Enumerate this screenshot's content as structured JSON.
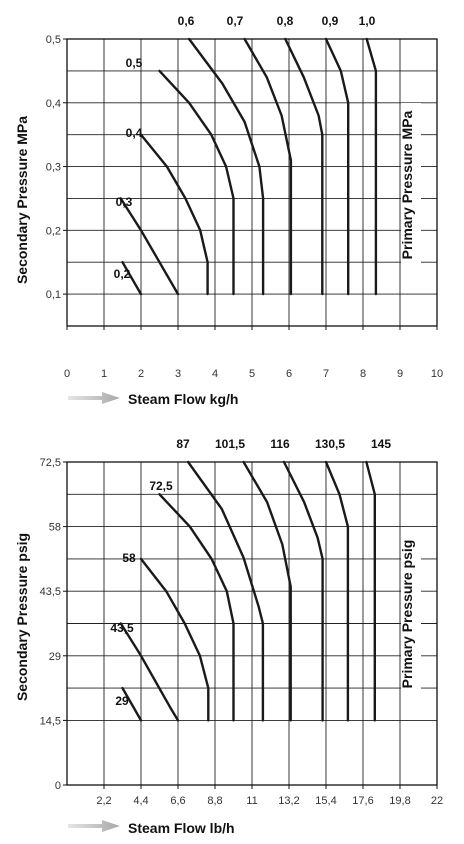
{
  "chart_data": [
    {
      "type": "line",
      "ylabel": "Secondary Pressure MPa",
      "xlabel": "Steam Flow kg/h",
      "right_label": "Primary Pressure MPa",
      "xlim": [
        0,
        10
      ],
      "ylim": [
        0.05,
        0.5
      ],
      "x_ticks": [
        0,
        1,
        2,
        3,
        4,
        5,
        6,
        7,
        8,
        9,
        10
      ],
      "x_tick_labels": [
        "0",
        "1",
        "2",
        "3",
        "4",
        "5",
        "6",
        "7",
        "8",
        "9",
        "10"
      ],
      "y_ticks": [
        0.1,
        0.2,
        0.3,
        0.4,
        0.5
      ],
      "y_tick_labels": [
        "0,1",
        "0,2",
        "0,3",
        "0,4",
        "0,5"
      ],
      "y_grid": [
        0.1,
        0.15,
        0.2,
        0.25,
        0.3,
        0.35,
        0.4,
        0.45,
        0.5
      ],
      "grid": true,
      "series": [
        {
          "name": "0,2",
          "points": [
            [
              1.5,
              0.15
            ],
            [
              2.0,
              0.1
            ]
          ]
        },
        {
          "name": "0,3",
          "points": [
            [
              1.45,
              0.25
            ],
            [
              2.0,
              0.2
            ],
            [
              2.4,
              0.16
            ],
            [
              2.8,
              0.12
            ],
            [
              3.0,
              0.1
            ]
          ]
        },
        {
          "name": "0,4",
          "points": [
            [
              2.0,
              0.35
            ],
            [
              2.7,
              0.3
            ],
            [
              3.2,
              0.25
            ],
            [
              3.6,
              0.2
            ],
            [
              3.8,
              0.15
            ],
            [
              3.8,
              0.1
            ]
          ]
        },
        {
          "name": "0,5",
          "points": [
            [
              2.5,
              0.45
            ],
            [
              3.3,
              0.4
            ],
            [
              3.9,
              0.35
            ],
            [
              4.3,
              0.3
            ],
            [
              4.5,
              0.25
            ],
            [
              4.5,
              0.2
            ],
            [
              4.5,
              0.1
            ]
          ]
        },
        {
          "name": "0,6",
          "points": [
            [
              3.3,
              0.5
            ],
            [
              4.2,
              0.43
            ],
            [
              4.8,
              0.37
            ],
            [
              5.2,
              0.3
            ],
            [
              5.3,
              0.25
            ],
            [
              5.3,
              0.1
            ]
          ]
        },
        {
          "name": "0,7",
          "points": [
            [
              4.8,
              0.5
            ],
            [
              5.4,
              0.44
            ],
            [
              5.8,
              0.38
            ],
            [
              6.05,
              0.31
            ],
            [
              6.05,
              0.3
            ],
            [
              6.05,
              0.1
            ]
          ]
        },
        {
          "name": "0,8",
          "points": [
            [
              5.9,
              0.5
            ],
            [
              6.4,
              0.44
            ],
            [
              6.8,
              0.38
            ],
            [
              6.9,
              0.35
            ],
            [
              6.9,
              0.1
            ]
          ]
        },
        {
          "name": "0,9",
          "points": [
            [
              7.0,
              0.5
            ],
            [
              7.4,
              0.45
            ],
            [
              7.6,
              0.4
            ],
            [
              7.6,
              0.1
            ]
          ]
        },
        {
          "name": "1,0",
          "points": [
            [
              8.1,
              0.5
            ],
            [
              8.35,
              0.45
            ],
            [
              8.35,
              0.1
            ]
          ]
        }
      ]
    },
    {
      "type": "line",
      "ylabel": "Secondary Pressure psig",
      "xlabel": "Steam Flow lb/h",
      "right_label": "Primary Pressure psig",
      "xlim": [
        0,
        22
      ],
      "ylim": [
        0,
        72.5
      ],
      "x_ticks": [
        2.2,
        4.4,
        6.6,
        8.8,
        11,
        13.2,
        15.4,
        17.6,
        19.8,
        22
      ],
      "x_tick_labels": [
        "2,2",
        "4,4",
        "6,6",
        "8,8",
        "11",
        "13,2",
        "15,4",
        "17,6",
        "19,8",
        "22"
      ],
      "y_ticks": [
        0,
        14.5,
        29,
        43.5,
        58,
        72.5
      ],
      "y_tick_labels": [
        "0",
        "14,5",
        "29",
        "43,5",
        "58",
        "72,5"
      ],
      "y_grid": [
        14.5,
        21.75,
        29,
        36.25,
        43.5,
        50.75,
        58,
        65.25,
        72.5
      ],
      "grid": true,
      "series": [
        {
          "name": "29",
          "points": [
            [
              3.3,
              21.75
            ],
            [
              4.4,
              14.5
            ]
          ]
        },
        {
          "name": "43,5",
          "points": [
            [
              3.2,
              36.25
            ],
            [
              4.4,
              29
            ],
            [
              5.3,
              23
            ],
            [
              6.2,
              17
            ],
            [
              6.6,
              14.5
            ]
          ]
        },
        {
          "name": "58",
          "points": [
            [
              4.4,
              50.75
            ],
            [
              5.9,
              43.5
            ],
            [
              7.0,
              36.25
            ],
            [
              7.9,
              29
            ],
            [
              8.4,
              21.75
            ],
            [
              8.4,
              14.5
            ]
          ]
        },
        {
          "name": "72,5",
          "points": [
            [
              5.5,
              65.25
            ],
            [
              7.3,
              58
            ],
            [
              8.6,
              50.75
            ],
            [
              9.5,
              43.5
            ],
            [
              9.9,
              36.25
            ],
            [
              9.9,
              29
            ],
            [
              9.9,
              14.5
            ]
          ]
        },
        {
          "name": "87",
          "points": [
            [
              7.2,
              72.5
            ],
            [
              9.2,
              62
            ],
            [
              10.5,
              51
            ],
            [
              11.4,
              40
            ],
            [
              11.65,
              36.25
            ],
            [
              11.65,
              14.5
            ]
          ]
        },
        {
          "name": "101,5",
          "points": [
            [
              10.5,
              72.5
            ],
            [
              11.9,
              63.5
            ],
            [
              12.8,
              54
            ],
            [
              13.3,
              44.5
            ],
            [
              13.3,
              14.5
            ]
          ]
        },
        {
          "name": "116",
          "points": [
            [
              12.9,
              72.5
            ],
            [
              14.1,
              63.5
            ],
            [
              14.9,
              55.5
            ],
            [
              15.2,
              50.75
            ],
            [
              15.2,
              14.5
            ]
          ]
        },
        {
          "name": "130,5",
          "points": [
            [
              15.4,
              72.5
            ],
            [
              16.2,
              65.25
            ],
            [
              16.7,
              58
            ],
            [
              16.7,
              14.5
            ]
          ]
        },
        {
          "name": "145",
          "points": [
            [
              17.8,
              72.5
            ],
            [
              18.3,
              65.25
            ],
            [
              18.3,
              14.5
            ]
          ]
        }
      ]
    }
  ]
}
